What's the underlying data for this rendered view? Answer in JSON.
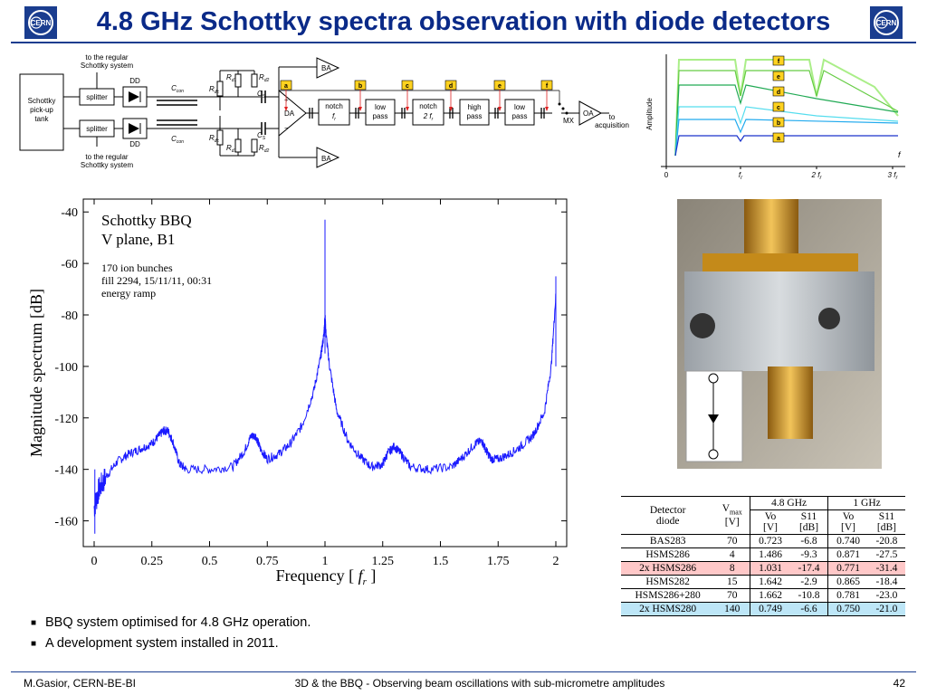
{
  "title": "4.8 GHz Schottky spectra observation with diode detectors",
  "logo_text": "CERN",
  "block_diagram": {
    "top_label": "to the regular\nSchottky system",
    "bottom_label": "to the regular\nSchottky system",
    "pickup": "Schottky\npick-up\ntank",
    "splitter": "splitter",
    "dd": "DD",
    "ccon": "C",
    "ccon_sub": "con",
    "rdc": "R",
    "rdc_sub": "dc",
    "rd1": "R",
    "rd1_sub": "d1",
    "rd2": "R",
    "rd2_sub": "d2",
    "cs": "C",
    "cs_sub": "S",
    "ba": "BA",
    "da": "DA",
    "notch1": "notch",
    "notch1_f": "f",
    "notch1_sub": "r",
    "lowpass": "low\npass",
    "notch2": "notch",
    "notch2_f": "2 f",
    "notch2_sub": "r",
    "highpass": "high\npass",
    "lowpass2": "low\npass",
    "mx": "MX",
    "oa": "OA",
    "to_acq": "to\nacquisition",
    "taps": [
      "a",
      "b",
      "c",
      "d",
      "e",
      "f"
    ]
  },
  "amplitude_plot": {
    "ylabel": "Amplitude",
    "xlabel": "f",
    "ticks": [
      "0",
      "f",
      "2 f",
      "3 f"
    ],
    "tick_sub": "r",
    "legend": [
      "f",
      "e",
      "d",
      "c",
      "b",
      "a"
    ],
    "colors": [
      "#1a33cc",
      "#22aaee",
      "#55ddee",
      "#22aa55",
      "#66cc44",
      "#aaee88"
    ]
  },
  "chart_data": {
    "type": "line",
    "ylabel": "Magnitude spectrum  [dB]",
    "xlabel": "Frequency",
    "xlabel_unit": "f",
    "xlabel_unit_sub": "r",
    "xlim": [
      0,
      2
    ],
    "ylim": [
      -170,
      -35
    ],
    "xticks": [
      "0",
      "0.25",
      "0.5",
      "0.75",
      "1",
      "1.25",
      "1.5",
      "1.75",
      "2"
    ],
    "yticks": [
      "-40",
      "-60",
      "-80",
      "-100",
      "-120",
      "-140",
      "-160"
    ],
    "annotations": {
      "title1": "Schottky BBQ",
      "title2": "V plane, B1",
      "line1": "170 ion bunches",
      "line2": "fill 2294, 15/11/11, 00:31",
      "line3": "energy ramp"
    },
    "series": [
      {
        "color": "#1a1aff",
        "x": [
          0.0,
          0.02,
          0.05,
          0.1,
          0.15,
          0.2,
          0.25,
          0.28,
          0.3,
          0.32,
          0.34,
          0.37,
          0.4,
          0.5,
          0.6,
          0.65,
          0.68,
          0.7,
          0.72,
          0.75,
          0.8,
          0.85,
          0.9,
          0.95,
          0.98,
          0.995,
          1.0,
          1.005,
          1.02,
          1.05,
          1.1,
          1.15,
          1.2,
          1.25,
          1.27,
          1.3,
          1.33,
          1.37,
          1.45,
          1.55,
          1.6,
          1.65,
          1.68,
          1.7,
          1.72,
          1.75,
          1.8,
          1.85,
          1.9,
          1.95,
          1.98,
          2.0
        ],
        "y": [
          -155,
          -148,
          -143,
          -137,
          -134,
          -132,
          -130,
          -127,
          -125,
          -125,
          -129,
          -138,
          -140,
          -140,
          -139,
          -133,
          -127,
          -127,
          -132,
          -136,
          -134,
          -130,
          -123,
          -110,
          -97,
          -88,
          -80,
          -88,
          -100,
          -117,
          -129,
          -135,
          -139,
          -138,
          -134,
          -131,
          -134,
          -139,
          -140,
          -139,
          -135,
          -130,
          -129,
          -133,
          -136,
          -136,
          -134,
          -131,
          -127,
          -118,
          -100,
          -72
        ]
      }
    ]
  },
  "photo": {
    "description_icon": "diode-detector-photo"
  },
  "detector_table": {
    "h_detector": "Detector\ndiode",
    "h_vmax": "V",
    "h_vmax_sub": "max",
    "h_vmax_unit": "[V]",
    "h_48": "4.8 GHz",
    "h_1": "1 GHz",
    "h_vo": "Vo",
    "h_vo_unit": "[V]",
    "h_s11": "S11",
    "h_s11_unit": "[dB]",
    "rows": [
      {
        "diode": "BAS283",
        "vmax": "70",
        "vo48": "0.723",
        "s48": "-6.8",
        "vo1": "0.740",
        "s1": "-20.8",
        "bg": "#ffffff"
      },
      {
        "diode": "HSMS286",
        "vmax": "4",
        "vo48": "1.486",
        "s48": "-9.3",
        "vo1": "0.871",
        "s1": "-27.5",
        "bg": "#ffffff"
      },
      {
        "diode": "2x HSMS286",
        "vmax": "8",
        "vo48": "1.031",
        "s48": "-17.4",
        "vo1": "0.771",
        "s1": "-31.4",
        "bg": "#ffc8c8"
      },
      {
        "diode": "HSMS282",
        "vmax": "15",
        "vo48": "1.642",
        "s48": "-2.9",
        "vo1": "0.865",
        "s1": "-18.4",
        "bg": "#ffffff"
      },
      {
        "diode": "HSMS286+280",
        "vmax": "70",
        "vo48": "1.662",
        "s48": "-10.8",
        "vo1": "0.781",
        "s1": "-23.0",
        "bg": "#ffffff"
      },
      {
        "diode": "2x HSMS280",
        "vmax": "140",
        "vo48": "0.749",
        "s48": "-6.6",
        "vo1": "0.750",
        "s1": "-21.0",
        "bg": "#bde6f7"
      }
    ]
  },
  "bullets": [
    "BBQ system optimised for 4.8 GHz operation.",
    "A development system installed in 2011."
  ],
  "footer": {
    "left": "M.Gasior, CERN-BE-BI",
    "center": "3D & the BBQ - Observing beam oscillations with sub-micrometre amplitudes",
    "page": "42"
  }
}
